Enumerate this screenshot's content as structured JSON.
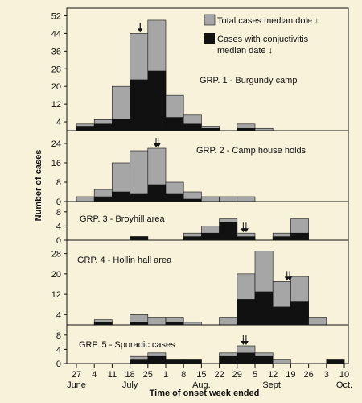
{
  "chart_data": {
    "type": "bar",
    "stacked": true,
    "ylabel": "Number of cases",
    "xlabel": "Time of onset week ended",
    "x_ticks": [
      "27",
      "4",
      "11",
      "18",
      "25",
      "1",
      "8",
      "15",
      "22",
      "29",
      "5",
      "12",
      "19",
      "26",
      "3",
      "10"
    ],
    "month_labels": [
      {
        "label": "June",
        "at_tick": 0
      },
      {
        "label": "July",
        "at_tick": 3
      },
      {
        "label": "Aug.",
        "at_tick": 7
      },
      {
        "label": "Sept.",
        "at_tick": 11
      },
      {
        "label": "Oct.",
        "at_tick": 15
      }
    ],
    "legend": {
      "total": "Total cases median dole ↓",
      "conj_line1": "Cases with conjuctivitis",
      "conj_line2": "median date ↓"
    },
    "colors": {
      "total": "#a6a6a6",
      "conj": "#111111",
      "background": "#f7f2d9"
    },
    "panels": [
      {
        "label": "GRP. 1 - Burgundy camp",
        "yticks": [
          4,
          12,
          20,
          28,
          36,
          44,
          52
        ],
        "ylim": [
          0,
          54
        ],
        "total": [
          3,
          5,
          20,
          44,
          50,
          16,
          7,
          2,
          0,
          3,
          1,
          0,
          0,
          0,
          0
        ],
        "conj": [
          2,
          3,
          5,
          23,
          27,
          6,
          3,
          1,
          0,
          1,
          0,
          0,
          0,
          0,
          0
        ],
        "median_arrows": [
          3.57,
          3.57
        ]
      },
      {
        "label": "GRP. 2 - Camp house holds",
        "yticks": [
          0,
          8,
          16,
          24
        ],
        "ylim": [
          0,
          28
        ],
        "total": [
          2,
          5,
          16,
          21,
          22,
          8,
          4,
          2,
          2,
          2,
          0,
          0,
          0,
          0,
          0
        ],
        "conj": [
          0,
          2,
          4,
          3,
          7,
          3,
          1,
          0,
          0,
          0,
          0,
          0,
          0,
          0,
          0
        ],
        "median_arrows": [
          4.46,
          4.58
        ]
      },
      {
        "label": "GRP. 3 - Broyhill area",
        "yticks": [
          0,
          4,
          8
        ],
        "ylim": [
          0,
          10
        ],
        "total": [
          0,
          0,
          0,
          1,
          0,
          0,
          2,
          4,
          6,
          2,
          0,
          2,
          6,
          0,
          0
        ],
        "conj": [
          0,
          0,
          0,
          1,
          0,
          0,
          1,
          2,
          5,
          1,
          0,
          1,
          2,
          0,
          0
        ],
        "median_arrows": [
          9.34,
          9.5
        ]
      },
      {
        "label": "GRP. 4 - Hollin hall area",
        "yticks": [
          4,
          12,
          20,
          28
        ],
        "ylim": [
          0,
          32
        ],
        "total": [
          0,
          2,
          0,
          4,
          3,
          3,
          1,
          0,
          3,
          20,
          29,
          17,
          19,
          3,
          0
        ],
        "conj": [
          0,
          1,
          0,
          1,
          0,
          1,
          0,
          0,
          0,
          10,
          13,
          7,
          9,
          0,
          0
        ],
        "median_arrows": [
          11.79,
          11.94
        ]
      },
      {
        "label": "GRP. 5 - Sporadic cases",
        "yticks": [
          0,
          4,
          8
        ],
        "ylim": [
          0,
          10
        ],
        "total": [
          0,
          0,
          0,
          2,
          3,
          1,
          1,
          0,
          3,
          5,
          3,
          1,
          0,
          0,
          1
        ],
        "conj": [
          0,
          0,
          0,
          1,
          2,
          1,
          1,
          0,
          2,
          3,
          2,
          0,
          0,
          0,
          1
        ],
        "median_arrows": [
          9.34,
          9.5
        ]
      }
    ]
  }
}
